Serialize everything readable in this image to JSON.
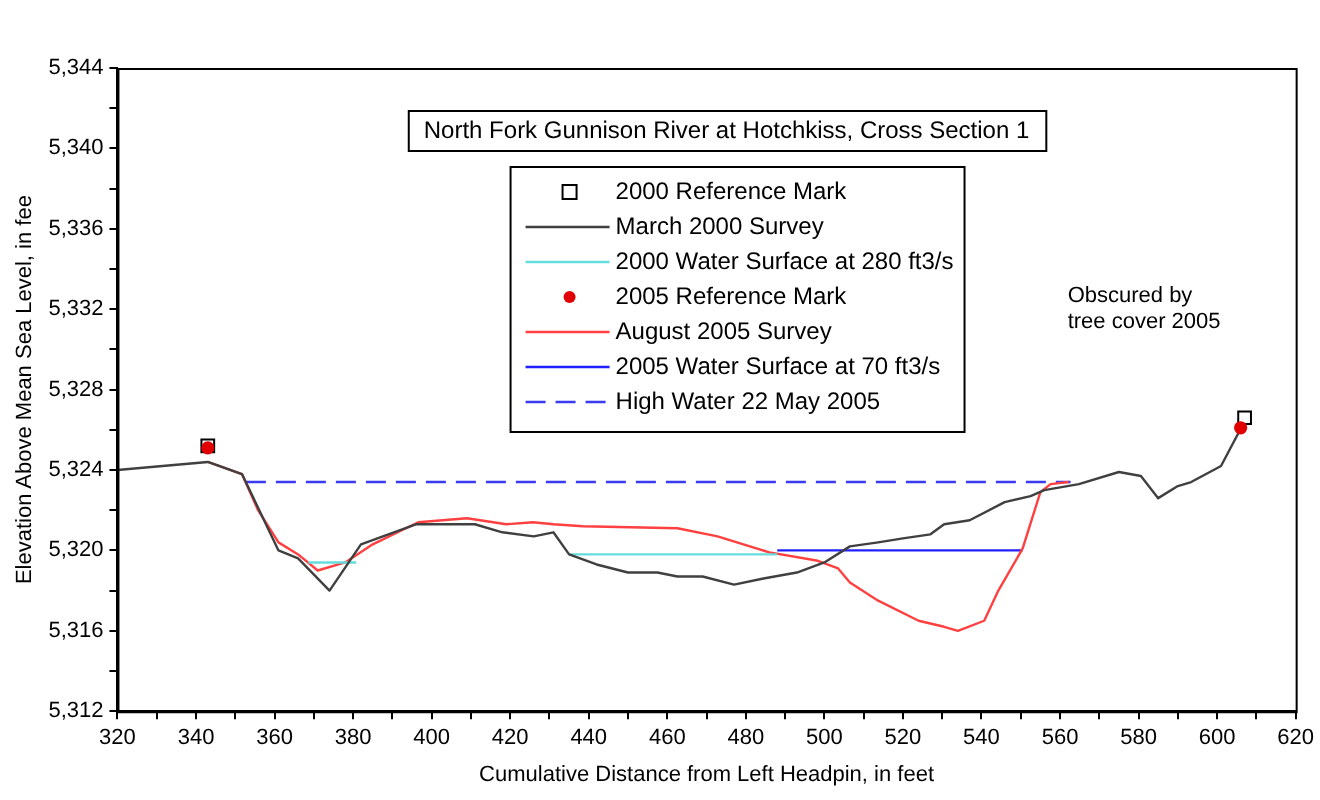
{
  "chart_data": {
    "type": "line",
    "title": "North Fork Gunnison River at Hotchkiss, Cross Section 1",
    "xlabel": "Cumulative Distance from Left Headpin, in feet",
    "ylabel": "Elevation Above Mean Sea Level, in fee",
    "xlim": [
      320,
      620
    ],
    "xticks": [
      320,
      {
        "value": 330,
        "label": null
      },
      340,
      {
        "value": 350,
        "label": null
      },
      360,
      {
        "value": 370,
        "label": null
      },
      380,
      {
        "value": 390,
        "label": null
      },
      400,
      {
        "value": 410,
        "label": null
      },
      420,
      {
        "value": 430,
        "label": null
      },
      440,
      {
        "value": 450,
        "label": null
      },
      460,
      {
        "value": 470,
        "label": null
      },
      480,
      {
        "value": 490,
        "label": null
      },
      500,
      {
        "value": 510,
        "label": null
      },
      520,
      {
        "value": 530,
        "label": null
      },
      540,
      {
        "value": 550,
        "label": null
      },
      560,
      {
        "value": 570,
        "label": null
      },
      580,
      {
        "value": 590,
        "label": null
      },
      600,
      {
        "value": 610,
        "label": null
      },
      620
    ],
    "ylim": [
      5312,
      5344
    ],
    "yticks": [
      {
        "value": 5312,
        "label": "5,312"
      },
      {
        "value": 5314,
        "label": null
      },
      {
        "value": 5316,
        "label": "5,316"
      },
      {
        "value": 5318,
        "label": null
      },
      {
        "value": 5320,
        "label": "5,320"
      },
      {
        "value": 5322,
        "label": null
      },
      {
        "value": 5324,
        "label": "5,324"
      },
      {
        "value": 5326,
        "label": null
      },
      {
        "value": 5328,
        "label": "5,328"
      },
      {
        "value": 5330,
        "label": null
      },
      {
        "value": 5332,
        "label": "5,332"
      },
      {
        "value": 5334,
        "label": null
      },
      {
        "value": 5336,
        "label": "5,336"
      },
      {
        "value": 5338,
        "label": null
      },
      {
        "value": 5340,
        "label": "5,340"
      },
      {
        "value": 5342,
        "label": null
      },
      {
        "value": 5344,
        "label": "5,344"
      }
    ],
    "grid": false,
    "legend": "top",
    "annotations": [
      "Obscured by tree cover 2005"
    ],
    "series": [
      {
        "name": "2000 Reference Mark",
        "type": "scatter",
        "marker": "square",
        "color": "#000000",
        "x": [
          343,
          607
        ],
        "values": [
          5325.2,
          5326.6
        ]
      },
      {
        "name": "March 2000 Survey",
        "marker": "none",
        "color": "#404040",
        "x": [
          320,
          343,
          351.7,
          361,
          366,
          374,
          382,
          396,
          411,
          418,
          426,
          431,
          435,
          442,
          450,
          457.5,
          462.6,
          469,
          477,
          484.5,
          493,
          500,
          506.5,
          513.7,
          520,
          527,
          530.5,
          537,
          545.9,
          552.5,
          556,
          564.8,
          575,
          580.6,
          585,
          590,
          593.4,
          601,
          605.6,
          607
        ],
        "values": [
          5324.0,
          5324.4,
          5323.8,
          5320.0,
          5319.6,
          5318.0,
          5320.3,
          5321.3,
          5321.3,
          5320.9,
          5320.7,
          5320.9,
          5319.8,
          5319.3,
          5318.9,
          5318.9,
          5318.7,
          5318.7,
          5318.3,
          5318.6,
          5318.9,
          5319.4,
          5320.2,
          5320.4,
          5320.6,
          5320.8,
          5321.3,
          5321.5,
          5322.4,
          5322.7,
          5323.0,
          5323.3,
          5323.9,
          5323.7,
          5322.6,
          5323.2,
          5323.4,
          5324.2,
          5325.9,
          5326.5
        ]
      },
      {
        "name": "2000 Water Surface at 280 ft3/s",
        "marker": "none",
        "color": "#66dddd",
        "x": [
          368.6,
          380.8,
          null,
          435,
          488
        ],
        "values": [
          5319.4,
          5319.4,
          null,
          5319.8,
          5319.8
        ]
      },
      {
        "name": "2005 Reference Mark",
        "type": "scatter",
        "marker": "circle",
        "color": "#e00000",
        "x": [
          343,
          606
        ],
        "values": [
          5325.1,
          5326.1
        ]
      },
      {
        "name": "August 2005 Survey",
        "marker": "none",
        "color": "#ff4040",
        "x": [
          343,
          351.7,
          355.8,
          361,
          366,
          371,
          378,
          385,
          396.6,
          409,
          419,
          425.8,
          431,
          438.5,
          462.6,
          472.8,
          486,
          498,
          503.5,
          506.5,
          513.7,
          524,
          530.5,
          534,
          540.7,
          544.3,
          550.5,
          555,
          557.6,
          562.2
        ],
        "values": [
          5324.4,
          5323.8,
          5322.0,
          5320.4,
          5319.8,
          5319.0,
          5319.4,
          5320.3,
          5321.4,
          5321.6,
          5321.3,
          5321.4,
          5321.3,
          5321.2,
          5321.1,
          5320.7,
          5319.9,
          5319.5,
          5319.1,
          5318.4,
          5317.5,
          5316.5,
          5316.2,
          5316.0,
          5316.5,
          5318.0,
          5320.1,
          5322.9,
          5323.3,
          5323.4
        ]
      },
      {
        "name": "2005 Water Surface at 70 ft3/s",
        "marker": "none",
        "color": "#2020ff",
        "x": [
          488,
          550.5
        ],
        "values": [
          5320.0,
          5320.0
        ]
      },
      {
        "name": "High Water 22 May 2005",
        "marker": "none",
        "line_style": "dashed",
        "color": "#3a3af0",
        "x": [
          352.7,
          562.7
        ],
        "values": [
          5323.4,
          5323.4
        ]
      }
    ]
  }
}
